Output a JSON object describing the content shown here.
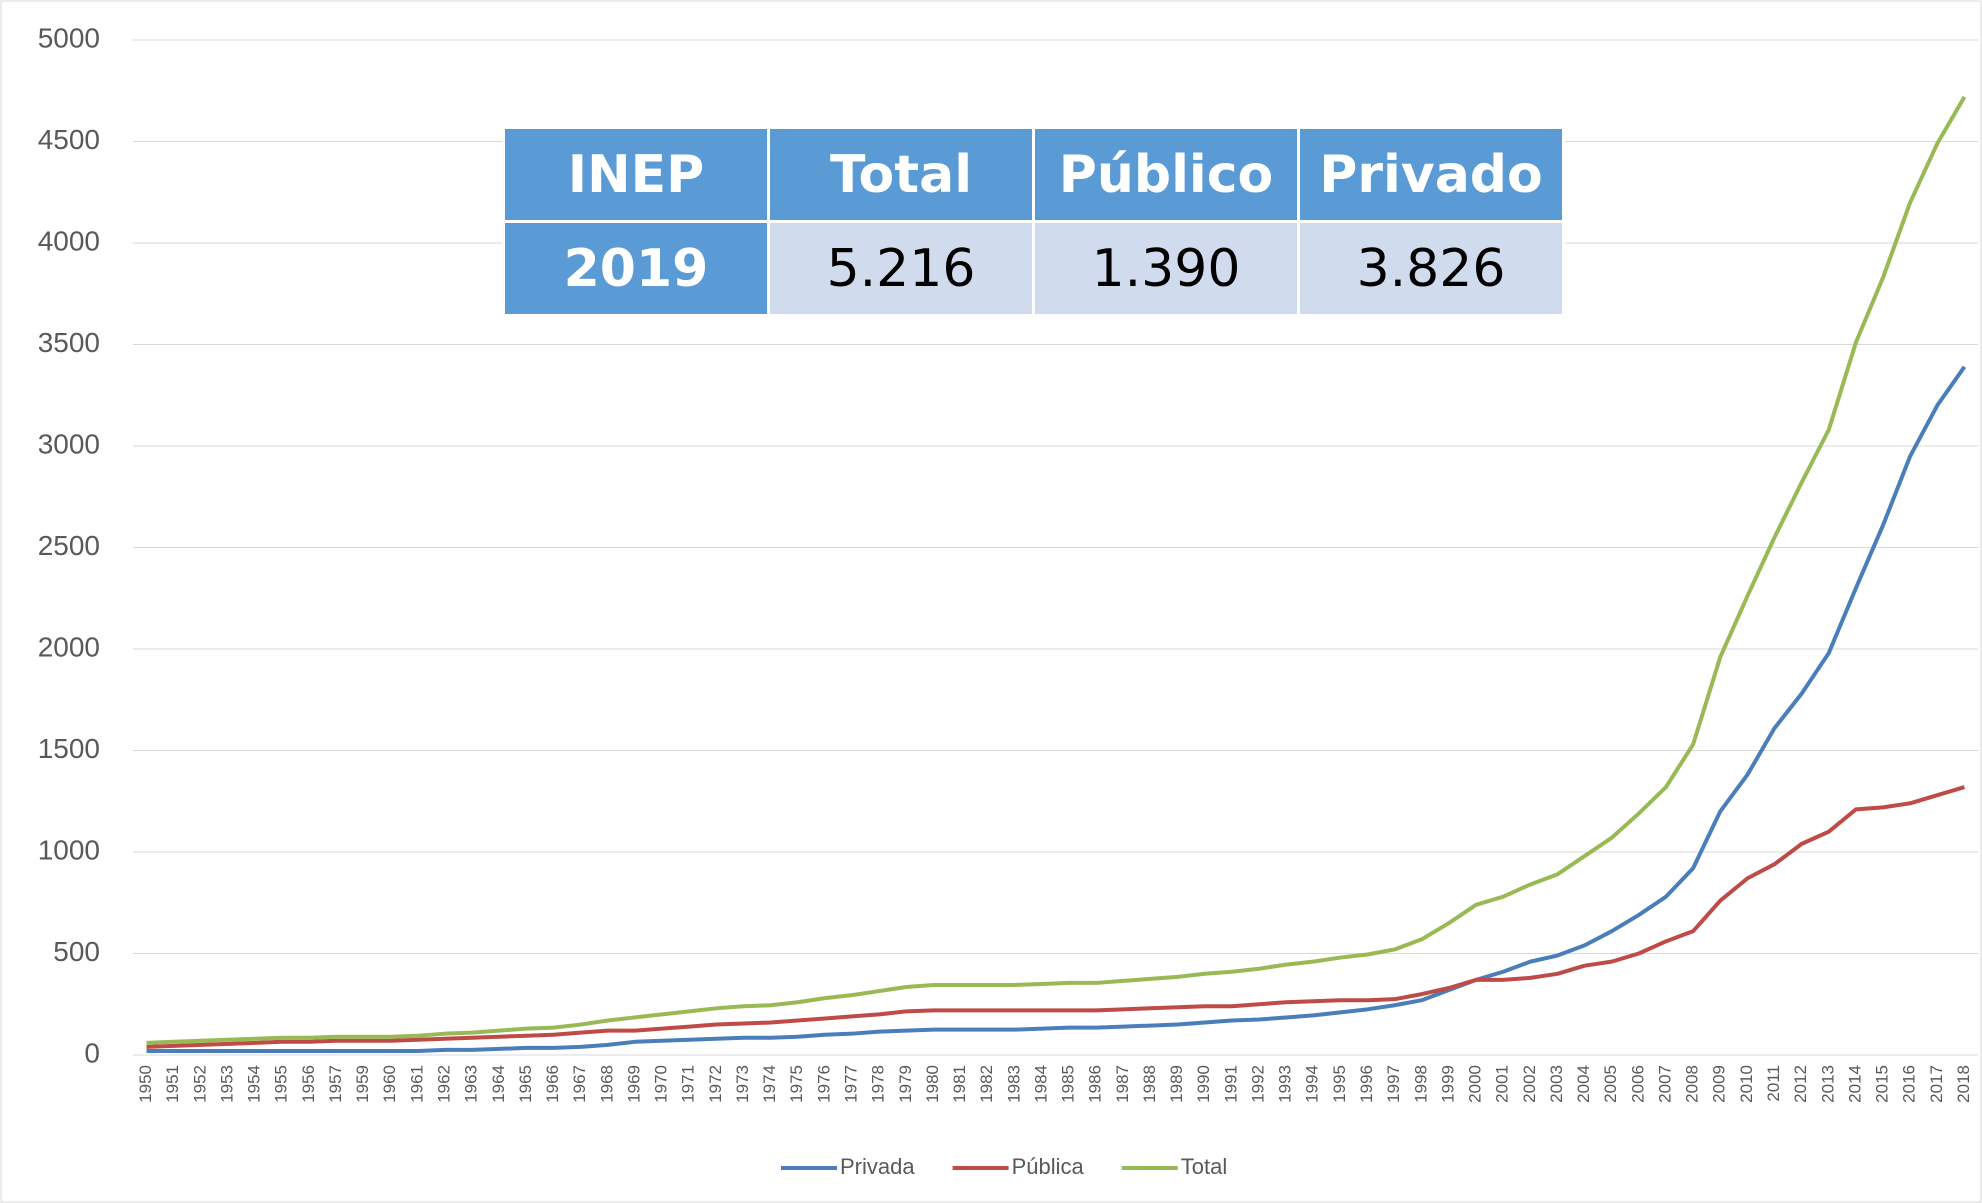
{
  "chart_data": {
    "type": "line",
    "categories": [
      "1950",
      "1951",
      "1952",
      "1953",
      "1954",
      "1955",
      "1956",
      "1957",
      "1959",
      "1960",
      "1961",
      "1962",
      "1963",
      "1964",
      "1965",
      "1966",
      "1967",
      "1968",
      "1969",
      "1970",
      "1971",
      "1972",
      "1973",
      "1974",
      "1975",
      "1976",
      "1977",
      "1978",
      "1979",
      "1980",
      "1981",
      "1982",
      "1983",
      "1984",
      "1985",
      "1986",
      "1987",
      "1988",
      "1989",
      "1990",
      "1991",
      "1992",
      "1993",
      "1994",
      "1995",
      "1996",
      "1997",
      "1998",
      "1999",
      "2000",
      "2001",
      "2002",
      "2003",
      "2004",
      "2005",
      "2006",
      "2007",
      "2008",
      "2009",
      "2010",
      "2011",
      "2012",
      "2013",
      "2014",
      "2015",
      "2016",
      "2017",
      "2018"
    ],
    "series": [
      {
        "name": "Privada",
        "color": "#4a7ebb",
        "values": [
          20,
          20,
          20,
          20,
          20,
          20,
          20,
          20,
          20,
          20,
          20,
          25,
          25,
          30,
          35,
          35,
          40,
          50,
          65,
          70,
          75,
          80,
          85,
          85,
          90,
          100,
          105,
          115,
          120,
          125,
          125,
          125,
          125,
          130,
          135,
          135,
          140,
          145,
          150,
          160,
          170,
          175,
          185,
          195,
          210,
          225,
          245,
          270,
          320,
          370,
          410,
          460,
          490,
          540,
          610,
          690,
          780,
          920,
          1200,
          1380,
          1610,
          1780,
          1980,
          2300,
          2610,
          2950,
          3200,
          3390
        ]
      },
      {
        "name": "Pública",
        "color": "#be4b48",
        "values": [
          40,
          45,
          50,
          55,
          60,
          65,
          65,
          70,
          70,
          70,
          75,
          80,
          85,
          90,
          95,
          100,
          110,
          120,
          120,
          130,
          140,
          150,
          155,
          160,
          170,
          180,
          190,
          200,
          215,
          220,
          220,
          220,
          220,
          220,
          220,
          220,
          225,
          230,
          235,
          240,
          240,
          250,
          260,
          265,
          270,
          270,
          275,
          300,
          330,
          370,
          370,
          380,
          400,
          440,
          460,
          500,
          560,
          610,
          760,
          870,
          940,
          1040,
          1100,
          1210,
          1220,
          1240,
          1280,
          1320
        ]
      },
      {
        "name": "Total",
        "color": "#98b954",
        "values": [
          60,
          65,
          70,
          75,
          80,
          85,
          85,
          90,
          90,
          90,
          95,
          105,
          110,
          120,
          130,
          135,
          150,
          170,
          185,
          200,
          215,
          230,
          240,
          245,
          260,
          280,
          295,
          315,
          335,
          345,
          345,
          345,
          345,
          350,
          355,
          355,
          365,
          375,
          385,
          400,
          410,
          425,
          445,
          460,
          480,
          495,
          520,
          570,
          650,
          740,
          780,
          840,
          890,
          980,
          1070,
          1190,
          1320,
          1530,
          1960,
          2260,
          2550,
          2820,
          3080,
          3510,
          3830,
          4200,
          4490,
          4720
        ]
      }
    ],
    "ylim": [
      0,
      5000
    ],
    "yticks": [
      0,
      500,
      1000,
      1500,
      2000,
      2500,
      3000,
      3500,
      4000,
      4500,
      5000
    ],
    "grid": true,
    "legend": "bottom"
  },
  "table": {
    "header": [
      "INEP",
      "Total",
      "Público",
      "Privado"
    ],
    "rows": [
      [
        "2019",
        "5.216",
        "1.390",
        "3.826"
      ]
    ]
  }
}
